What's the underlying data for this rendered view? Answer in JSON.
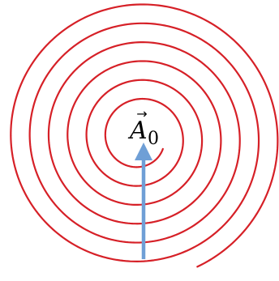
{
  "diagram": {
    "vector_symbol": "A",
    "vector_subscript": "0",
    "vector_arrow_mark": "→",
    "colors": {
      "spiral": "#d62027",
      "arrow": "#6f9fd6",
      "text": "#000000",
      "background": "#ffffff"
    },
    "spiral_turns": 6
  }
}
